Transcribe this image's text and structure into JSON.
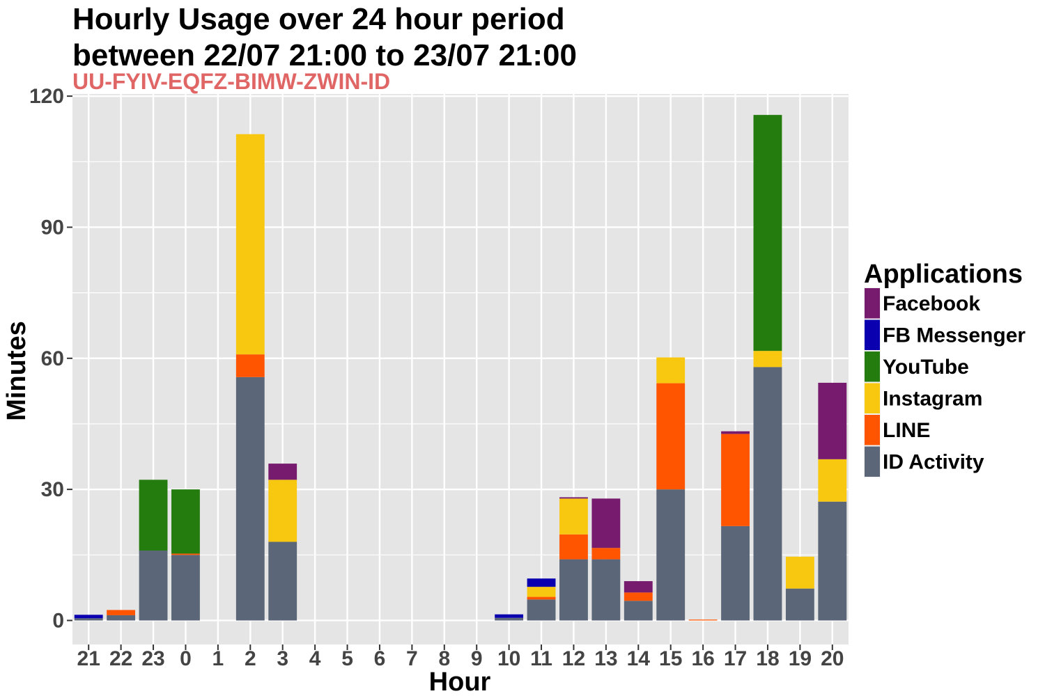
{
  "chart_data": {
    "type": "bar",
    "stacked": true,
    "title_lines": [
      "Hourly Usage over 24 hour period",
      "between 22/07 21:00 to 23/07 21:00"
    ],
    "subtitle": "UU-FYIV-EQFZ-BIMW-ZWIN-ID",
    "xlabel": "Hour",
    "ylabel": "Minutes",
    "ylim": [
      -5.5,
      120.5
    ],
    "yticks": [
      0,
      30,
      60,
      90,
      120
    ],
    "categories": [
      "21",
      "22",
      "23",
      "0",
      "1",
      "2",
      "3",
      "4",
      "5",
      "6",
      "7",
      "8",
      "9",
      "10",
      "11",
      "12",
      "13",
      "14",
      "15",
      "16",
      "17",
      "18",
      "19",
      "20"
    ],
    "legend_title": "Applications",
    "legend_position": "right",
    "grid": true,
    "colors": {
      "background": "#e5e5e5",
      "grid": "#ffffff",
      "subtitle": "#e06666"
    },
    "series": [
      {
        "name": "ID Activity",
        "color": "#5b6778",
        "values": [
          0.5,
          1.2,
          16,
          15,
          0,
          55.7,
          18,
          0,
          0,
          0,
          0,
          0,
          0,
          0.6,
          4.8,
          14,
          14,
          4.5,
          30,
          0,
          21.6,
          58,
          7.3,
          27.2
        ]
      },
      {
        "name": "LINE",
        "color": "#ff5500",
        "values": [
          0,
          1.2,
          0,
          0.3,
          0,
          5.2,
          0,
          0,
          0,
          0,
          0,
          0,
          0,
          0,
          0.6,
          5.7,
          2.6,
          1.9,
          24.3,
          0.2,
          21.1,
          0,
          0,
          0
        ]
      },
      {
        "name": "Instagram",
        "color": "#f7c80f",
        "values": [
          0,
          0,
          0,
          0,
          0,
          50.4,
          14.2,
          0,
          0,
          0,
          0,
          0,
          0,
          0,
          2.3,
          8.2,
          0,
          0,
          5.9,
          0,
          0,
          3.7,
          7.3,
          9.7
        ]
      },
      {
        "name": "YouTube",
        "color": "#247b0e",
        "values": [
          0,
          0,
          16.2,
          14.7,
          0,
          0,
          0,
          0,
          0,
          0,
          0,
          0,
          0,
          0,
          0,
          0,
          0,
          0,
          0,
          0,
          0,
          54,
          0,
          0
        ]
      },
      {
        "name": "FB Messenger",
        "color": "#0a00b0",
        "values": [
          0.8,
          0,
          0,
          0,
          0,
          0,
          0,
          0,
          0,
          0,
          0,
          0,
          0,
          0.8,
          1.9,
          0,
          0,
          0,
          0,
          0,
          0,
          0,
          0,
          0
        ]
      },
      {
        "name": "Facebook",
        "color": "#761b6e",
        "values": [
          0,
          0,
          0,
          0,
          0,
          0,
          3.7,
          0,
          0,
          0,
          0,
          0,
          0,
          0,
          0,
          0.3,
          11.3,
          2.6,
          0,
          0,
          0.6,
          0,
          0,
          17.5
        ]
      }
    ],
    "legend_order": [
      "Facebook",
      "FB Messenger",
      "YouTube",
      "Instagram",
      "LINE",
      "ID Activity"
    ]
  }
}
